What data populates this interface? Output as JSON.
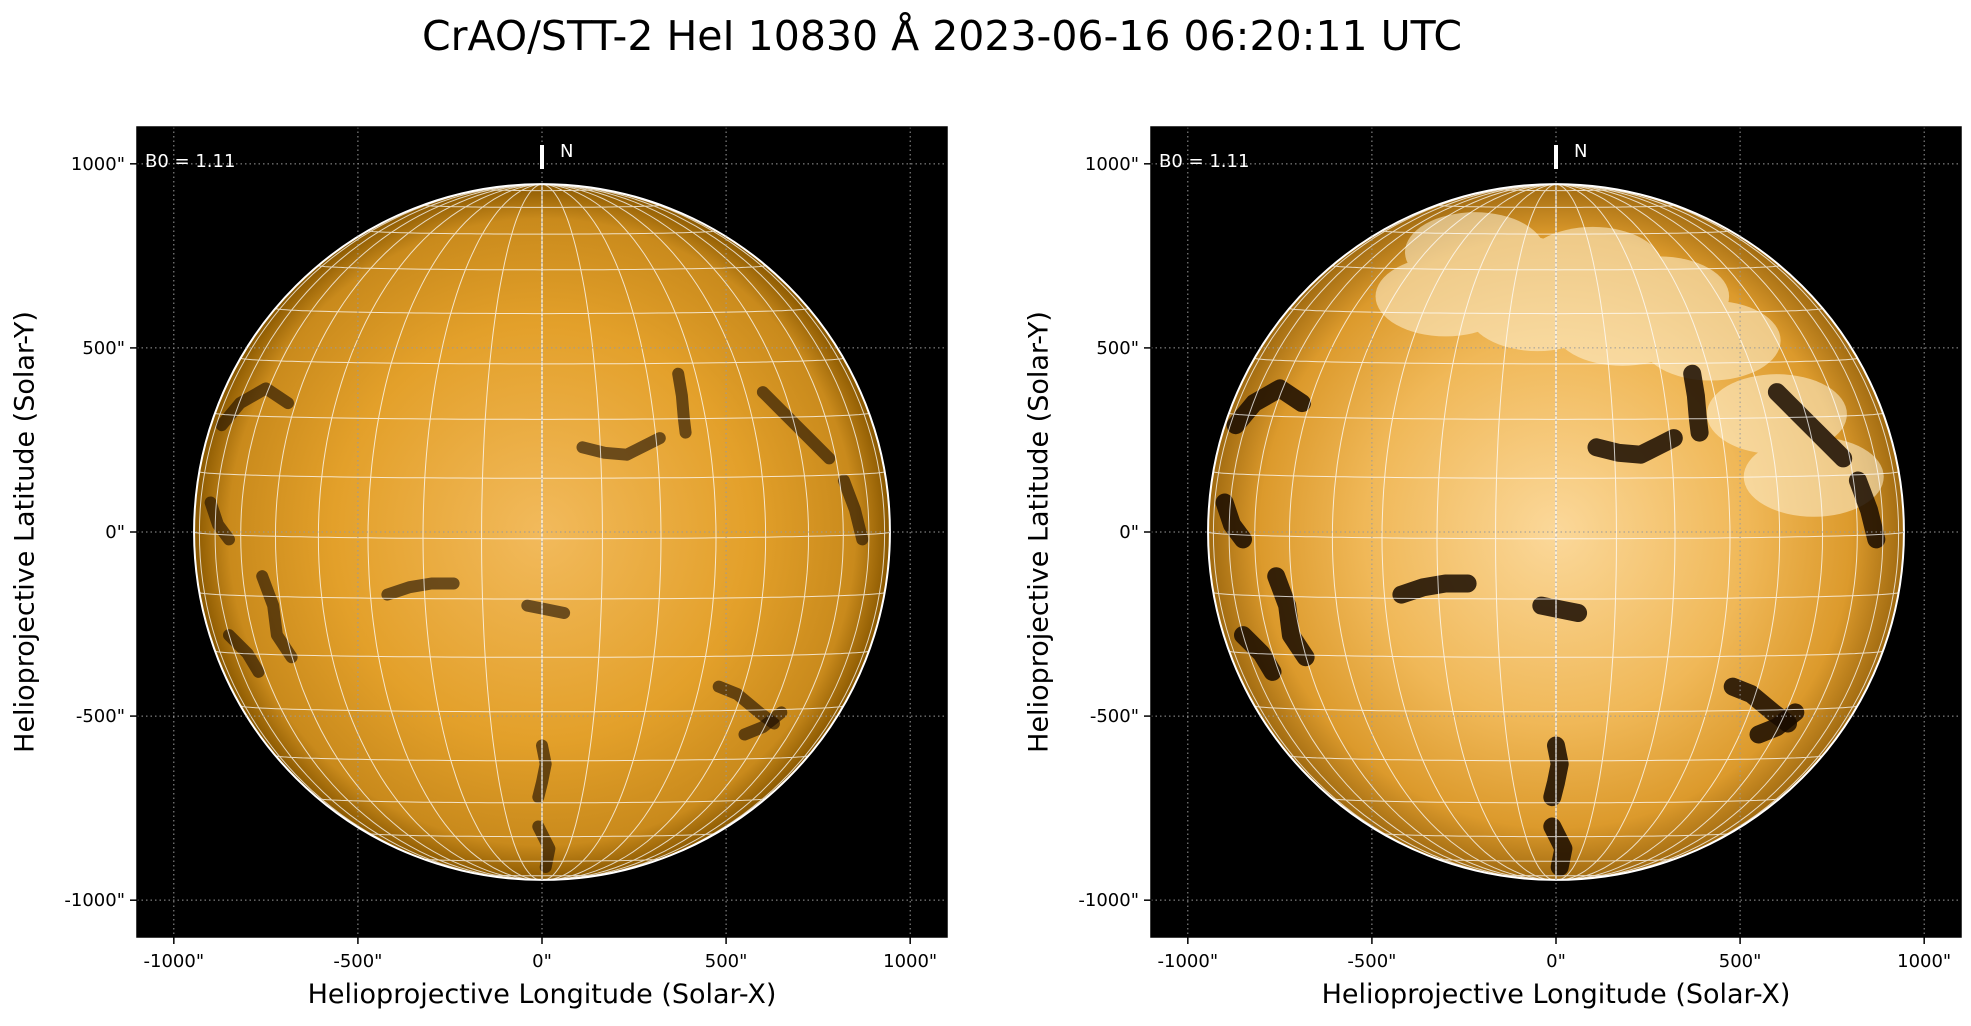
{
  "title": "CrAO/STT-2 HeI 10830 Å 2023-06-16 06:20:11 UTC",
  "colors": {
    "disk_center": "#f2ba5c",
    "disk_mid": "#e3a02a",
    "disk_limb": "#8a5800",
    "space": "#000000",
    "grid": "#ffffff",
    "filament": "#170a00"
  },
  "panels": [
    {
      "id": "left",
      "b0_label": "B0 = 1.11",
      "north_label": "N",
      "xlabel": "Helioprojective Longitude (Solar-X)",
      "ylabel": "Helioprojective Latitude (Solar-Y)",
      "xticks": [
        "-1000\"",
        "-500\"",
        "0\"",
        "500\"",
        "1000\""
      ],
      "yticks": [
        "1000\"",
        "500\"",
        "0\"",
        "-500\"",
        "-1000\""
      ],
      "contrast": "normal"
    },
    {
      "id": "right",
      "b0_label": "B0 = 1.11",
      "north_label": "N",
      "xlabel": "Helioprojective Longitude (Solar-X)",
      "ylabel": "Helioprojective Latitude (Solar-Y)",
      "xticks": [
        "-1000\"",
        "-500\"",
        "0\"",
        "500\"",
        "1000\""
      ],
      "yticks": [
        "1000\"",
        "500\"",
        "0\"",
        "-500\"",
        "-1000\""
      ],
      "contrast": "enhanced"
    }
  ],
  "map": {
    "tick_values": [
      -1000,
      -500,
      0,
      500,
      1000
    ],
    "extent_arcsec": [
      -1100,
      1100
    ],
    "solar_radius_arcsec": 945,
    "b0_deg": 1.11,
    "grid_step_deg": 10,
    "filaments": [
      {
        "name": "filament-center-north",
        "arcsec": [
          [
            110,
            230
          ],
          [
            170,
            215
          ],
          [
            230,
            210
          ],
          [
            280,
            235
          ],
          [
            320,
            255
          ]
        ]
      },
      {
        "name": "filament-northeast-vertical",
        "arcsec": [
          [
            370,
            430
          ],
          [
            380,
            370
          ],
          [
            385,
            310
          ],
          [
            390,
            270
          ]
        ]
      },
      {
        "name": "filament-east-limb-north",
        "arcsec": [
          [
            600,
            380
          ],
          [
            660,
            320
          ],
          [
            720,
            260
          ],
          [
            780,
            200
          ]
        ]
      },
      {
        "name": "filament-east-limb",
        "arcsec": [
          [
            820,
            140
          ],
          [
            850,
            60
          ],
          [
            870,
            -20
          ]
        ]
      },
      {
        "name": "filament-west-limb-north",
        "arcsec": [
          [
            -870,
            290
          ],
          [
            -820,
            350
          ],
          [
            -750,
            390
          ],
          [
            -690,
            350
          ]
        ]
      },
      {
        "name": "filament-west-south",
        "arcsec": [
          [
            -760,
            -120
          ],
          [
            -730,
            -200
          ],
          [
            -720,
            -280
          ],
          [
            -680,
            -340
          ]
        ]
      },
      {
        "name": "filament-southwest-patch",
        "arcsec": [
          [
            -850,
            -280
          ],
          [
            -800,
            -330
          ],
          [
            -770,
            -380
          ]
        ]
      },
      {
        "name": "filament-mid-south",
        "arcsec": [
          [
            -420,
            -170
          ],
          [
            -360,
            -150
          ],
          [
            -300,
            -140
          ],
          [
            -240,
            -140
          ]
        ]
      },
      {
        "name": "filament-center-south",
        "arcsec": [
          [
            -40,
            -200
          ],
          [
            10,
            -210
          ],
          [
            60,
            -220
          ]
        ]
      },
      {
        "name": "filament-south-central",
        "arcsec": [
          [
            0,
            -580
          ],
          [
            10,
            -630
          ],
          [
            0,
            -680
          ],
          [
            -10,
            -720
          ]
        ]
      },
      {
        "name": "filament-southeast",
        "arcsec": [
          [
            480,
            -420
          ],
          [
            530,
            -440
          ],
          [
            590,
            -490
          ],
          [
            630,
            -520
          ]
        ]
      },
      {
        "name": "filament-southeast-lower",
        "arcsec": [
          [
            550,
            -550
          ],
          [
            600,
            -530
          ],
          [
            650,
            -490
          ]
        ]
      },
      {
        "name": "filament-south-lower",
        "arcsec": [
          [
            -10,
            -800
          ],
          [
            20,
            -860
          ],
          [
            10,
            -910
          ]
        ]
      },
      {
        "name": "filament-west-mid",
        "arcsec": [
          [
            -900,
            80
          ],
          [
            -880,
            20
          ],
          [
            -850,
            -20
          ]
        ]
      }
    ]
  }
}
